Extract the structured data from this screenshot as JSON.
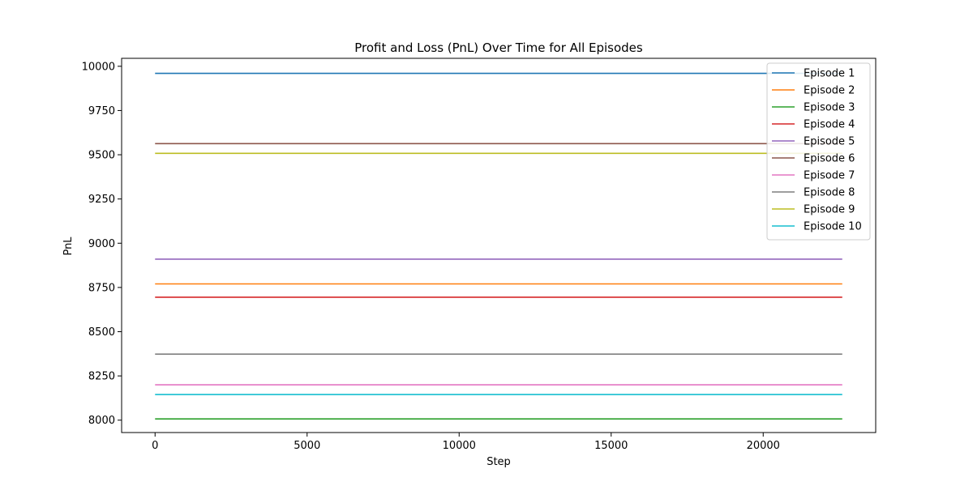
{
  "chart_data": {
    "type": "line",
    "title": "Profit and Loss (PnL) Over Time for All Episodes",
    "xlabel": "Step",
    "ylabel": "PnL",
    "xlim": [
      -1100,
      23700
    ],
    "ylim": [
      7930,
      10045
    ],
    "xticks": [
      0,
      5000,
      10000,
      15000,
      20000
    ],
    "yticks": [
      8000,
      8250,
      8500,
      8750,
      9000,
      9250,
      9500,
      9750,
      10000
    ],
    "grid": false,
    "legend_position": "top-right",
    "x": [
      0,
      22600
    ],
    "series": [
      {
        "name": "Episode 1",
        "color": "#1f77b4",
        "values": [
          9960,
          9960
        ]
      },
      {
        "name": "Episode 2",
        "color": "#ff7f0e",
        "values": [
          8770,
          8770
        ]
      },
      {
        "name": "Episode 3",
        "color": "#2ca02c",
        "values": [
          8007,
          8007
        ]
      },
      {
        "name": "Episode 4",
        "color": "#d62728",
        "values": [
          8695,
          8695
        ]
      },
      {
        "name": "Episode 5",
        "color": "#9467bd",
        "values": [
          8910,
          8910
        ]
      },
      {
        "name": "Episode 6",
        "color": "#8c564b",
        "values": [
          9563,
          9563
        ]
      },
      {
        "name": "Episode 7",
        "color": "#e377c2",
        "values": [
          8200,
          8200
        ]
      },
      {
        "name": "Episode 8",
        "color": "#7f7f7f",
        "values": [
          8373,
          8373
        ]
      },
      {
        "name": "Episode 9",
        "color": "#bcbd22",
        "values": [
          9508,
          9508
        ]
      },
      {
        "name": "Episode 10",
        "color": "#17becf",
        "values": [
          8145,
          8145
        ]
      }
    ]
  }
}
